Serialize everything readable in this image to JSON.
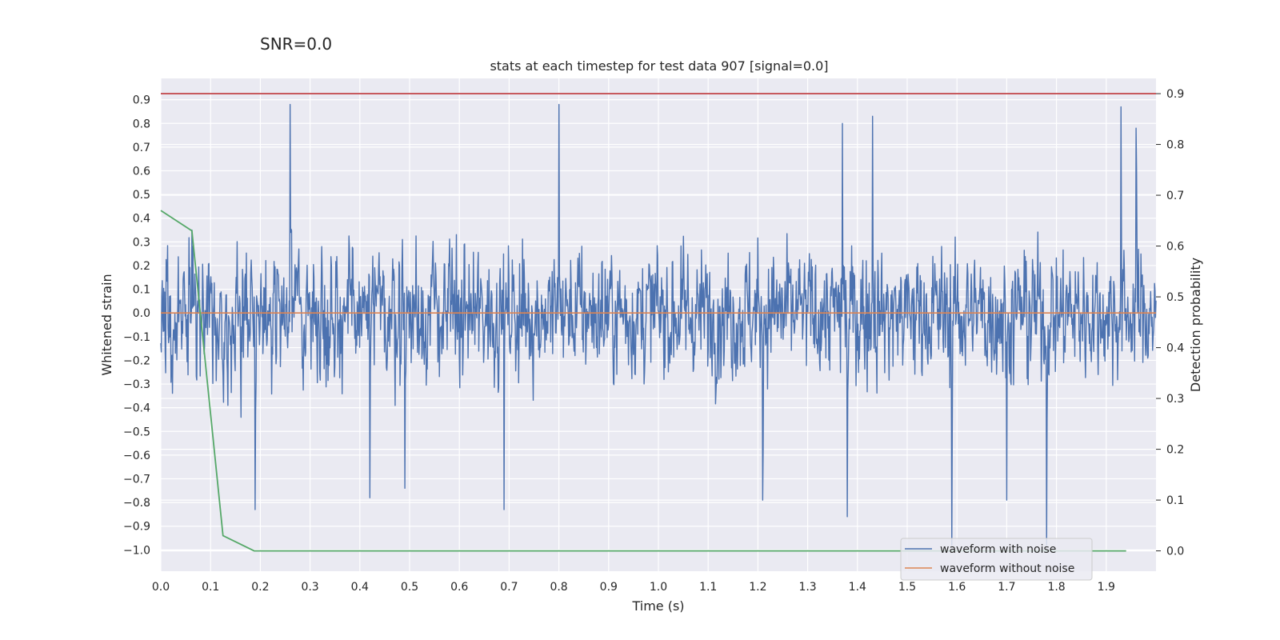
{
  "snr_label": "SNR=0.0",
  "colors": {
    "background": "#eaeaf2",
    "grid": "#ffffff",
    "noisy": "#4c72b0",
    "clean": "#dd8452",
    "probability": "#55a868",
    "threshold": "#c44e52"
  },
  "chart_data": {
    "type": "line",
    "title": "stats at each timestep for test data 907 [signal=0.0]",
    "xlabel": "Time (s)",
    "ylabel": "Whitened strain",
    "y2label": "Detection probability",
    "xlim": [
      0.0,
      2.0
    ],
    "ylim": [
      -1.09,
      0.99
    ],
    "y2lim": [
      -0.04,
      0.93
    ],
    "x_ticks": [
      "0.0",
      "0.1",
      "0.2",
      "0.3",
      "0.4",
      "0.5",
      "0.6",
      "0.7",
      "0.8",
      "0.9",
      "1.0",
      "1.1",
      "1.2",
      "1.3",
      "1.4",
      "1.5",
      "1.6",
      "1.7",
      "1.8",
      "1.9"
    ],
    "y_ticks": [
      "0.9",
      "0.8",
      "0.7",
      "0.6",
      "0.5",
      "0.4",
      "0.3",
      "0.2",
      "0.1",
      "0.0",
      "−0.1",
      "−0.2",
      "−0.3",
      "−0.4",
      "−0.5",
      "−0.6",
      "−0.7",
      "−0.8",
      "−0.9",
      "−1.0"
    ],
    "y2_ticks": [
      "0.9",
      "0.8",
      "0.7",
      "0.6",
      "0.5",
      "0.4",
      "0.3",
      "0.2",
      "0.1",
      "0.0"
    ],
    "series": [
      {
        "name": "waveform with noise",
        "axis": "left",
        "sampling": "2048 Hz whitened noise, amplitude roughly within -0.98..0.88",
        "peaks": [
          {
            "t": 0.26,
            "v": 0.88
          },
          {
            "t": 0.8,
            "v": 0.88
          },
          {
            "t": 1.93,
            "v": 0.87
          },
          {
            "t": 1.59,
            "v": -0.98
          },
          {
            "t": 1.78,
            "v": -0.98
          },
          {
            "t": 0.19,
            "v": -0.83
          },
          {
            "t": 0.69,
            "v": -0.83
          },
          {
            "t": 1.38,
            "v": -0.86
          },
          {
            "t": 1.43,
            "v": 0.83
          },
          {
            "t": 1.37,
            "v": 0.8
          },
          {
            "t": 1.96,
            "v": 0.78
          },
          {
            "t": 1.21,
            "v": -0.79
          },
          {
            "t": 0.42,
            "v": -0.78
          },
          {
            "t": 1.7,
            "v": -0.79
          },
          {
            "t": 0.49,
            "v": -0.74
          }
        ]
      },
      {
        "name": "waveform without noise",
        "axis": "left",
        "x": [
          0.0,
          2.0
        ],
        "y": [
          0.0,
          0.0
        ]
      },
      {
        "name": "detection probability",
        "axis": "right",
        "x": [
          0.0,
          0.0625,
          0.125,
          0.1875,
          0.25,
          0.5,
          1.0,
          1.5,
          1.94
        ],
        "y": [
          0.67,
          0.63,
          0.03,
          0.0,
          0.0,
          0.0,
          0.0,
          0.0,
          0.0
        ]
      },
      {
        "name": "threshold",
        "axis": "right",
        "x": [
          0.0,
          2.0
        ],
        "y": [
          0.9,
          0.9
        ]
      }
    ],
    "legend": {
      "placement": "lower-right",
      "entries": [
        "waveform with noise",
        "waveform without noise"
      ]
    }
  }
}
